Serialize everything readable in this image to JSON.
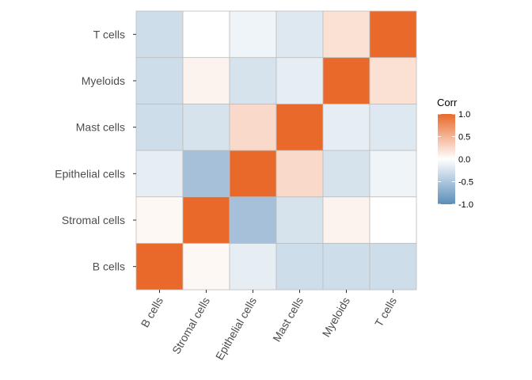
{
  "chart_data": {
    "type": "heatmap",
    "title": "",
    "xlabel": "",
    "ylabel": "",
    "x_categories": [
      "B cells",
      "Stromal cells",
      "Epithelial cells",
      "Mast cells",
      "Myeloids",
      "T cells"
    ],
    "y_categories": [
      "B cells",
      "Stromal cells",
      "Epithelial cells",
      "Mast cells",
      "Myeloids",
      "T cells"
    ],
    "values": [
      [
        1.0,
        0.05,
        -0.15,
        -0.3,
        -0.3,
        -0.3
      ],
      [
        0.05,
        1.0,
        -0.55,
        -0.25,
        0.08,
        0.0
      ],
      [
        -0.15,
        -0.55,
        1.0,
        0.25,
        -0.25,
        -0.1
      ],
      [
        -0.3,
        -0.25,
        0.25,
        1.0,
        -0.15,
        -0.2
      ],
      [
        -0.3,
        0.08,
        -0.25,
        -0.15,
        1.0,
        0.2
      ],
      [
        -0.3,
        0.0,
        -0.1,
        -0.2,
        0.2,
        1.0
      ]
    ],
    "legend": {
      "title": "Corr",
      "ticks": [
        1.0,
        0.5,
        0.0,
        -0.5,
        -1.0
      ],
      "tick_labels": [
        "1.0",
        "0.5",
        "0.0",
        "-0.5",
        "-1.0"
      ],
      "range": [
        -1.0,
        1.0
      ],
      "placement": "right"
    },
    "colors": {
      "low": "#5b8db8",
      "mid": "#ffffff",
      "high": "#e8692a",
      "grid": "#bdbdbd"
    },
    "x_tick_rotation": "60"
  }
}
